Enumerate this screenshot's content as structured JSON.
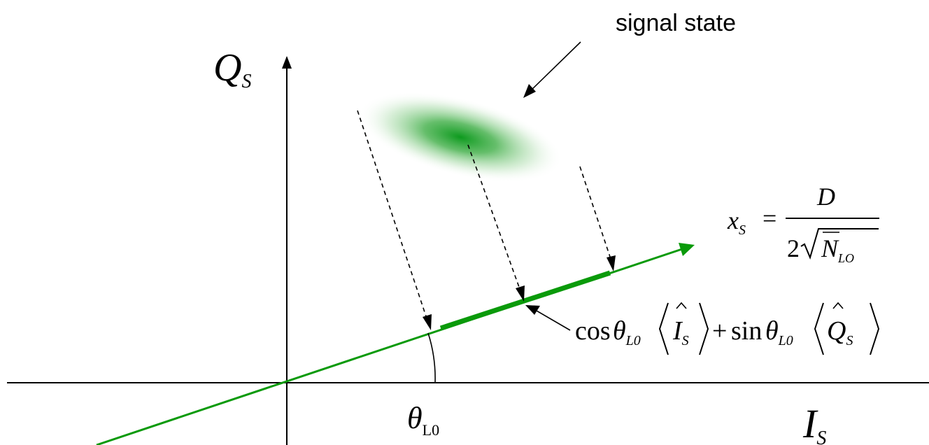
{
  "labels": {
    "signal_state": "signal state",
    "axis_q_main": "Q",
    "axis_q_sub": "S",
    "axis_i_main": "I",
    "axis_i_sub": "S",
    "angle_main": "θ",
    "angle_sub": "L0"
  },
  "formula_xs": {
    "lhs_main": "x",
    "lhs_sub": "S",
    "equals": "=",
    "numerator": "D",
    "coef": "2",
    "n_symbol": "N",
    "n_sub": "LO"
  },
  "formula_projection": {
    "cos": "cos",
    "theta1": "θ",
    "theta1_sub": "L0",
    "i_symbol": "I",
    "i_sub": "S",
    "plus": "+",
    "sin": "sin",
    "theta2": "θ",
    "theta2_sub": "L0",
    "q_symbol": "Q",
    "q_sub": "S"
  },
  "colors": {
    "accent_green": "#0a9a0a",
    "axis_black": "#000000",
    "blob_core": "#0d9a1e"
  }
}
